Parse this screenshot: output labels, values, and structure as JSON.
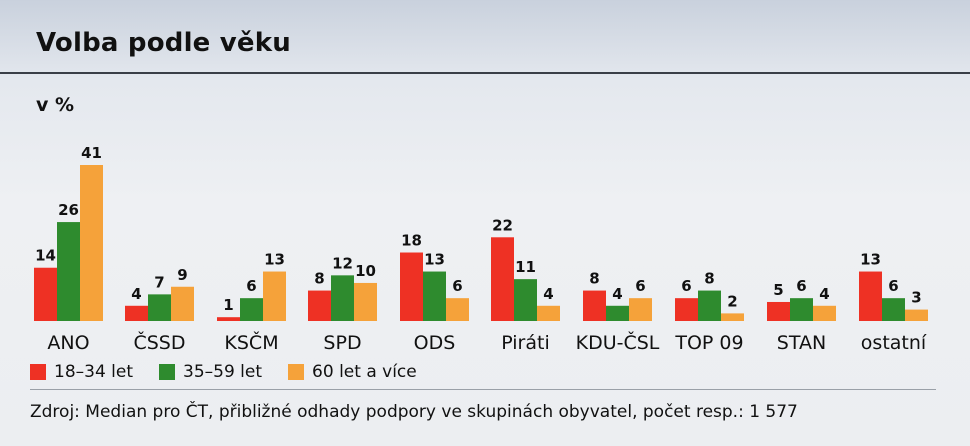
{
  "header": {
    "title": "Volba podle věku",
    "subtitle": "v %"
  },
  "colors": {
    "series_18_34": "#ee3124",
    "series_35_59": "#2e8b2e",
    "series_60": "#f5a23a"
  },
  "chart_data": {
    "type": "bar",
    "title": "Volba podle věku",
    "ylabel": "v %",
    "ylim": [
      0,
      41
    ],
    "grid": false,
    "legend": "bottom-left",
    "categories": [
      "ANO",
      "ČSSD",
      "KSČM",
      "SPD",
      "ODS",
      "Piráti",
      "KDU-ČSL",
      "TOP 09",
      "STAN",
      "ostatní"
    ],
    "series": [
      {
        "name": "18–34 let",
        "color": "#ee3124",
        "values": [
          14,
          4,
          1,
          8,
          18,
          22,
          8,
          6,
          5,
          13
        ]
      },
      {
        "name": "35–59 let",
        "color": "#2e8b2e",
        "values": [
          26,
          7,
          6,
          12,
          13,
          11,
          4,
          8,
          6,
          6
        ]
      },
      {
        "name": "60 let a více",
        "color": "#f5a23a",
        "values": [
          41,
          9,
          13,
          10,
          6,
          4,
          6,
          2,
          4,
          3
        ]
      }
    ]
  },
  "legend": {
    "items": [
      {
        "label": "18–34 let",
        "color": "#ee3124"
      },
      {
        "label": "35–59 let",
        "color": "#2e8b2e"
      },
      {
        "label": "60 let a více",
        "color": "#f5a23a"
      }
    ]
  },
  "footer": {
    "source": "Zdroj: Median pro ČT, přibližné odhady podpory ve skupinách obyvatel, počet resp.: 1 577"
  }
}
